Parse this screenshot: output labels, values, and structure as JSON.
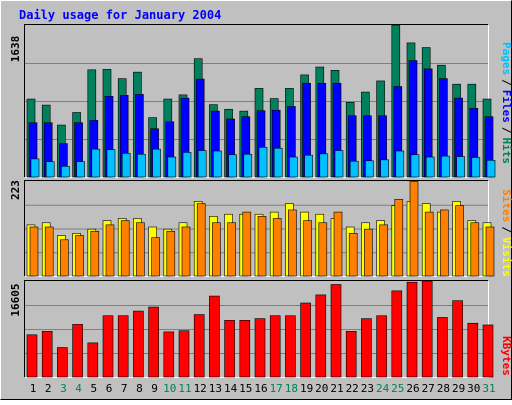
{
  "title": "Daily usage for January 2004",
  "colors": {
    "background": "#c0c0c0",
    "title": "#0000ff",
    "hits": "#00805c",
    "files": "#0000ff",
    "pages": "#00c0ff",
    "sites": "#ff8000",
    "visits": "#ffff00",
    "kbytes": "#ff0000",
    "weekend_label": "#00805c"
  },
  "chart_data": [
    {
      "type": "bar",
      "panel": "top",
      "y_label_max": "1638",
      "ylim": [
        0,
        1638
      ],
      "legend": [
        "Pages",
        "/",
        "Files",
        "/",
        "Hits"
      ],
      "categories": [
        "1",
        "2",
        "3",
        "4",
        "5",
        "6",
        "7",
        "8",
        "9",
        "10",
        "11",
        "12",
        "13",
        "14",
        "15",
        "16",
        "17",
        "18",
        "19",
        "20",
        "21",
        "22",
        "23",
        "24",
        "25",
        "26",
        "27",
        "28",
        "29",
        "30",
        "31"
      ],
      "weekend_days": [
        "3",
        "4",
        "10",
        "11",
        "17",
        "18",
        "24",
        "25",
        "31"
      ],
      "series": [
        {
          "name": "Hits",
          "values": [
            840,
            775,
            560,
            695,
            1155,
            1160,
            1060,
            1130,
            640,
            840,
            885,
            1275,
            780,
            730,
            710,
            955,
            845,
            955,
            1100,
            1185,
            1150,
            805,
            915,
            1035,
            1637,
            1445,
            1395,
            1205,
            1000,
            1000,
            840
          ]
        },
        {
          "name": "Files",
          "values": [
            585,
            585,
            360,
            585,
            610,
            870,
            880,
            890,
            520,
            595,
            850,
            1055,
            710,
            625,
            650,
            715,
            720,
            760,
            1010,
            1010,
            1010,
            660,
            660,
            660,
            975,
            1255,
            1165,
            1060,
            850,
            740,
            650
          ]
        },
        {
          "name": "Pages",
          "values": [
            195,
            165,
            115,
            165,
            300,
            295,
            255,
            245,
            300,
            215,
            265,
            285,
            280,
            240,
            245,
            320,
            310,
            215,
            235,
            250,
            285,
            170,
            175,
            185,
            280,
            240,
            215,
            225,
            220,
            210,
            180
          ]
        }
      ]
    },
    {
      "type": "bar",
      "panel": "middle",
      "y_label_max": "223",
      "ylim": [
        0,
        223
      ],
      "legend": [
        "Sites",
        "/",
        "Visits"
      ],
      "categories": [
        "1",
        "2",
        "3",
        "4",
        "5",
        "6",
        "7",
        "8",
        "9",
        "10",
        "11",
        "12",
        "13",
        "14",
        "15",
        "16",
        "17",
        "18",
        "19",
        "20",
        "21",
        "22",
        "23",
        "24",
        "25",
        "26",
        "27",
        "28",
        "29",
        "30",
        "31"
      ],
      "series": [
        {
          "name": "Visits",
          "values": [
            120,
            125,
            95,
            100,
            110,
            130,
            135,
            135,
            115,
            110,
            125,
            175,
            140,
            145,
            145,
            145,
            150,
            170,
            150,
            145,
            135,
            115,
            125,
            130,
            165,
            175,
            170,
            150,
            175,
            130,
            125
          ]
        },
        {
          "name": "Sites",
          "values": [
            115,
            115,
            85,
            95,
            105,
            120,
            130,
            125,
            90,
            105,
            115,
            170,
            125,
            125,
            150,
            140,
            135,
            155,
            130,
            125,
            150,
            100,
            110,
            120,
            180,
            222,
            150,
            155,
            165,
            125,
            115
          ]
        }
      ]
    },
    {
      "type": "bar",
      "panel": "bottom",
      "y_label_max": "16605",
      "ylim": [
        0,
        16605
      ],
      "legend": [
        "KBytes"
      ],
      "categories": [
        "1",
        "2",
        "3",
        "4",
        "5",
        "6",
        "7",
        "8",
        "9",
        "10",
        "11",
        "12",
        "13",
        "14",
        "15",
        "16",
        "17",
        "18",
        "19",
        "20",
        "21",
        "22",
        "23",
        "24",
        "25",
        "26",
        "27",
        "28",
        "29",
        "30",
        "31"
      ],
      "series": [
        {
          "name": "KBytes",
          "values": [
            7300,
            7900,
            5100,
            9100,
            5900,
            10600,
            10600,
            11400,
            12100,
            7800,
            8000,
            10800,
            14000,
            9800,
            9800,
            10100,
            10600,
            10600,
            12800,
            14200,
            16000,
            7900,
            10100,
            10600,
            14900,
            16400,
            16600,
            10300,
            13200,
            9300,
            9000
          ]
        }
      ]
    }
  ]
}
